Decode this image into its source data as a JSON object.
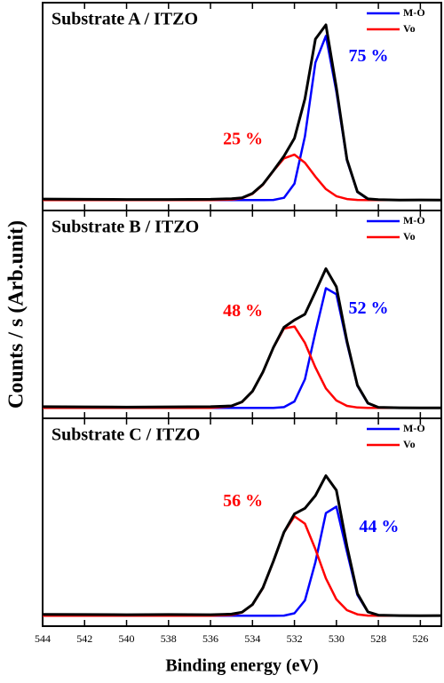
{
  "chart_data": [
    {
      "type": "line",
      "title": "Substrate A / ITZO",
      "x": [
        544,
        542,
        540,
        538,
        536,
        535,
        534.5,
        534,
        533.5,
        533,
        532.5,
        532,
        531.5,
        531,
        530.5,
        530,
        529.5,
        529,
        528.5,
        528,
        527,
        526,
        525
      ],
      "xlim": [
        544,
        525
      ],
      "ylim": [
        0,
        1
      ],
      "series": [
        {
          "name": "M-O",
          "color": "#0000ff",
          "label": "75 %",
          "values": [
            0.05,
            0.05,
            0.05,
            0.05,
            0.05,
            0.05,
            0.05,
            0.05,
            0.05,
            0.051,
            0.061,
            0.129,
            0.357,
            0.712,
            0.84,
            0.572,
            0.241,
            0.089,
            0.054,
            0.05,
            0.05,
            0.05,
            0.05
          ]
        },
        {
          "name": "Vo",
          "color": "#ff0000",
          "label": "25 %",
          "values": [
            0.05,
            0.05,
            0.05,
            0.05,
            0.05,
            0.052,
            0.059,
            0.08,
            0.124,
            0.19,
            0.251,
            0.269,
            0.23,
            0.163,
            0.103,
            0.069,
            0.055,
            0.051,
            0.05,
            0.05,
            0.05,
            0.05,
            0.05
          ]
        },
        {
          "color": "#000000",
          "values": [
            0.055,
            0.054,
            0.053,
            0.053,
            0.054,
            0.057,
            0.061,
            0.082,
            0.126,
            0.192,
            0.262,
            0.348,
            0.537,
            0.825,
            0.893,
            0.591,
            0.246,
            0.09,
            0.056,
            0.052,
            0.05,
            0.051,
            0.05
          ]
        }
      ]
    },
    {
      "type": "line",
      "title": "Substrate B / ITZO",
      "ylabel": "Counts / s (Arb.unit)",
      "x": [
        544,
        542,
        540,
        538,
        536,
        535,
        534.5,
        534,
        533.5,
        533,
        532.5,
        532,
        531.5,
        531,
        530.5,
        530,
        529.5,
        529,
        528.5,
        528,
        527,
        526,
        525
      ],
      "xlim": [
        544,
        525
      ],
      "ylim": [
        0,
        1
      ],
      "series": [
        {
          "name": "M-O",
          "color": "#0000ff",
          "label": "52 %",
          "values": [
            0.05,
            0.05,
            0.05,
            0.05,
            0.05,
            0.05,
            0.05,
            0.05,
            0.05,
            0.05,
            0.054,
            0.081,
            0.188,
            0.414,
            0.626,
            0.597,
            0.362,
            0.157,
            0.072,
            0.053,
            0.05,
            0.05,
            0.05
          ]
        },
        {
          "name": "Vo",
          "color": "#ff0000",
          "label": "48 %",
          "values": [
            0.05,
            0.05,
            0.05,
            0.05,
            0.05,
            0.058,
            0.078,
            0.129,
            0.222,
            0.34,
            0.432,
            0.442,
            0.363,
            0.245,
            0.144,
            0.086,
            0.06,
            0.052,
            0.05,
            0.05,
            0.05,
            0.05,
            0.05
          ]
        },
        {
          "color": "#000000",
          "values": [
            0.056,
            0.055,
            0.054,
            0.055,
            0.056,
            0.06,
            0.079,
            0.13,
            0.223,
            0.341,
            0.438,
            0.473,
            0.501,
            0.609,
            0.72,
            0.633,
            0.372,
            0.159,
            0.073,
            0.053,
            0.051,
            0.05,
            0.05
          ]
        }
      ]
    },
    {
      "type": "line",
      "title": "Substrate C / ITZO",
      "xlabel": "Binding energy (eV)",
      "x": [
        544,
        542,
        540,
        538,
        536,
        535,
        534.5,
        534,
        533.5,
        533,
        532.5,
        532,
        531.5,
        531,
        530.5,
        530,
        529.5,
        529,
        528.5,
        528,
        527,
        526,
        525
      ],
      "xlim": [
        544,
        525
      ],
      "ylim": [
        0,
        1
      ],
      "xticks": [
        544,
        542,
        540,
        538,
        536,
        534,
        532,
        530,
        528,
        526
      ],
      "series": [
        {
          "name": "M-O",
          "color": "#0000ff",
          "label": "44 %",
          "values": [
            0.05,
            0.05,
            0.05,
            0.05,
            0.05,
            0.05,
            0.05,
            0.05,
            0.05,
            0.05,
            0.051,
            0.062,
            0.124,
            0.308,
            0.544,
            0.575,
            0.358,
            0.15,
            0.068,
            0.052,
            0.05,
            0.05,
            0.05
          ]
        },
        {
          "name": "Vo",
          "color": "#ff0000",
          "label": "56 %",
          "values": [
            0.05,
            0.05,
            0.05,
            0.05,
            0.05,
            0.054,
            0.066,
            0.103,
            0.183,
            0.312,
            0.451,
            0.528,
            0.493,
            0.37,
            0.23,
            0.129,
            0.077,
            0.057,
            0.051,
            0.05,
            0.05,
            0.05,
            0.05
          ]
        },
        {
          "color": "#000000",
          "values": [
            0.057,
            0.056,
            0.055,
            0.056,
            0.055,
            0.058,
            0.067,
            0.104,
            0.185,
            0.313,
            0.452,
            0.54,
            0.567,
            0.628,
            0.724,
            0.654,
            0.385,
            0.157,
            0.069,
            0.053,
            0.051,
            0.05,
            0.051
          ]
        }
      ]
    }
  ]
}
